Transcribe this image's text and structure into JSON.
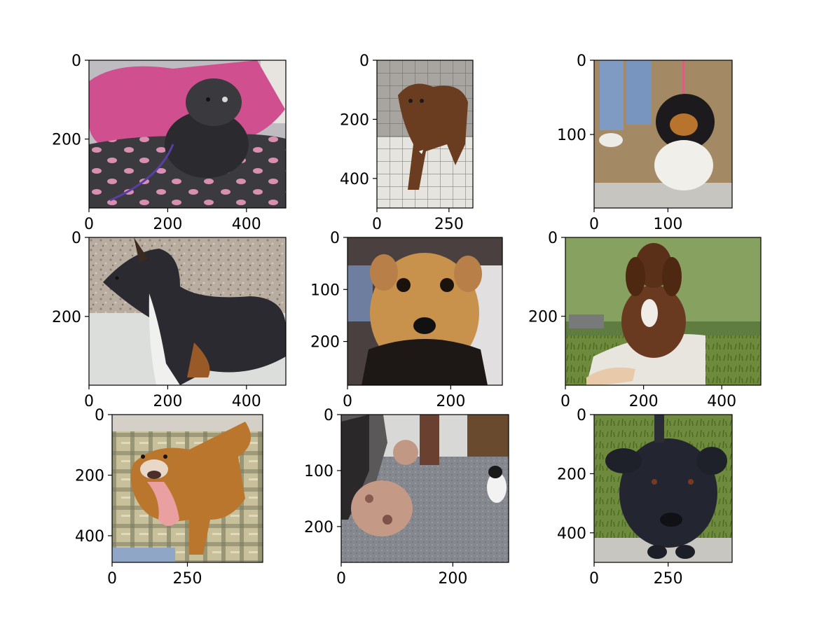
{
  "figure": {
    "panels": [
      {
        "index": 1,
        "image": "dog-lying-on-pink-pillow",
        "x_range": [
          0,
          500
        ],
        "y_range": [
          0,
          375
        ],
        "xticks": [
          {
            "value": 0,
            "label": "0"
          },
          {
            "value": 200,
            "label": "200"
          },
          {
            "value": 400,
            "label": "400"
          }
        ],
        "yticks": [
          {
            "value": 0,
            "label": "0"
          },
          {
            "value": 200,
            "label": "200"
          }
        ]
      },
      {
        "index": 2,
        "image": "brown-dog-standing-in-pen",
        "x_range": [
          0,
          333
        ],
        "y_range": [
          0,
          500
        ],
        "xticks": [
          {
            "value": 0,
            "label": "0"
          },
          {
            "value": 250,
            "label": "250"
          }
        ],
        "yticks": [
          {
            "value": 0,
            "label": "0"
          },
          {
            "value": 200,
            "label": "200"
          },
          {
            "value": 400,
            "label": "400"
          }
        ]
      },
      {
        "index": 3,
        "image": "tricolor-dog-on-leash",
        "x_range": [
          0,
          187
        ],
        "y_range": [
          0,
          199
        ],
        "xticks": [
          {
            "value": 0,
            "label": "0"
          },
          {
            "value": 100,
            "label": "100"
          }
        ],
        "yticks": [
          {
            "value": 0,
            "label": "0"
          },
          {
            "value": 100,
            "label": "100"
          }
        ]
      },
      {
        "index": 4,
        "image": "tricolor-dog-side-profile",
        "x_range": [
          0,
          500
        ],
        "y_range": [
          0,
          374
        ],
        "xticks": [
          {
            "value": 0,
            "label": "0"
          },
          {
            "value": 200,
            "label": "200"
          },
          {
            "value": 400,
            "label": "400"
          }
        ],
        "yticks": [
          {
            "value": 0,
            "label": "0"
          },
          {
            "value": 200,
            "label": "200"
          }
        ]
      },
      {
        "index": 5,
        "image": "tan-puppy-closeup",
        "x_range": [
          0,
          300
        ],
        "y_range": [
          0,
          284
        ],
        "xticks": [
          {
            "value": 0,
            "label": "0"
          },
          {
            "value": 200,
            "label": "200"
          }
        ],
        "yticks": [
          {
            "value": 0,
            "label": "0"
          },
          {
            "value": 100,
            "label": "100"
          },
          {
            "value": 200,
            "label": "200"
          }
        ]
      },
      {
        "index": 6,
        "image": "basset-puppy-sitting-outdoors",
        "x_range": [
          0,
          500
        ],
        "y_range": [
          0,
          375
        ],
        "xticks": [
          {
            "value": 0,
            "label": "0"
          },
          {
            "value": 200,
            "label": "200"
          },
          {
            "value": 400,
            "label": "400"
          }
        ],
        "yticks": [
          {
            "value": 0,
            "label": "0"
          },
          {
            "value": 200,
            "label": "200"
          }
        ]
      },
      {
        "index": 7,
        "image": "pitbull-on-plaid-blanket",
        "x_range": [
          0,
          500
        ],
        "y_range": [
          0,
          488
        ],
        "xticks": [
          {
            "value": 0,
            "label": "0"
          },
          {
            "value": 250,
            "label": "250"
          }
        ],
        "yticks": [
          {
            "value": 0,
            "label": "0"
          },
          {
            "value": 200,
            "label": "200"
          },
          {
            "value": 400,
            "label": "400"
          }
        ]
      },
      {
        "index": 8,
        "image": "merle-dog-and-cat-indoors",
        "x_range": [
          0,
          300
        ],
        "y_range": [
          0,
          264
        ],
        "xticks": [
          {
            "value": 0,
            "label": "0"
          },
          {
            "value": 200,
            "label": "200"
          }
        ],
        "yticks": [
          {
            "value": 0,
            "label": "0"
          },
          {
            "value": 100,
            "label": "100"
          },
          {
            "value": 200,
            "label": "200"
          }
        ]
      },
      {
        "index": 9,
        "image": "black-dog-face-closeup",
        "x_range": [
          0,
          466
        ],
        "y_range": [
          0,
          500
        ],
        "xticks": [
          {
            "value": 0,
            "label": "0"
          },
          {
            "value": 250,
            "label": "250"
          }
        ],
        "yticks": [
          {
            "value": 0,
            "label": "0"
          },
          {
            "value": 200,
            "label": "200"
          },
          {
            "value": 400,
            "label": "400"
          }
        ]
      }
    ]
  },
  "chart_data": {
    "type": "image-grid",
    "rows": 3,
    "cols": 3,
    "grid": false
  }
}
